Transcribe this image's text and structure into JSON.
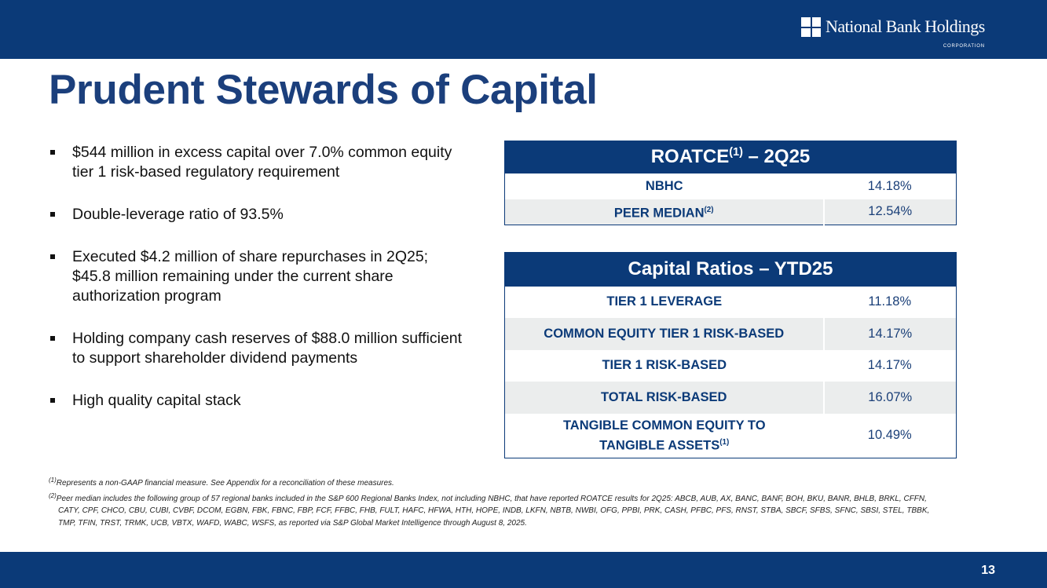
{
  "header": {
    "logo_text": "National Bank Holdings",
    "logo_sub": "CORPORATION",
    "brand_color": "#0b3a78"
  },
  "title": "Prudent Stewards of Capital",
  "bullets": [
    "$544 million in excess capital over 7.0% common equity tier 1 risk-based regulatory requirement",
    "Double-leverage ratio of 93.5%",
    "Executed $4.2 million of share repurchases in 2Q25; $45.8 million remaining under the current share authorization program",
    "Holding company cash reserves of $88.0 million sufficient to support shareholder dividend payments",
    "High quality capital stack"
  ],
  "roatce": {
    "title_pre": "ROATCE",
    "title_sup": "(1)",
    "title_post": " – 2Q25",
    "rows": [
      {
        "label": "NBHC",
        "sup": "",
        "value": "14.18%"
      },
      {
        "label": "PEER MEDIAN",
        "sup": "(2)",
        "value": "12.54%"
      }
    ]
  },
  "capital": {
    "title": "Capital Ratios – YTD25",
    "rows": [
      {
        "label": "TIER 1 LEVERAGE",
        "value": "11.18%"
      },
      {
        "label": "COMMON EQUITY TIER 1 RISK-BASED",
        "value": "14.17%"
      },
      {
        "label": "TIER 1 RISK-BASED",
        "value": "14.17%"
      },
      {
        "label": "TOTAL RISK-BASED",
        "value": "16.07%"
      },
      {
        "label_line1": "TANGIBLE COMMON EQUITY TO",
        "label_line2": "TANGIBLE ASSETS",
        "sup": "(1)",
        "value": "10.49%"
      }
    ]
  },
  "footnotes": [
    {
      "mark": "(1)",
      "text": "Represents a non-GAAP financial measure.  See Appendix for a reconciliation of these measures."
    },
    {
      "mark": "(2)",
      "text": "Peer median includes the following group of 57 regional banks included in the S&P 600 Regional Banks Index, not including NBHC, that have reported ROATCE results for 2Q25: ABCB, AUB, AX, BANC, BANF, BOH, BKU, BANR, BHLB, BRKL, CFFN, CATY, CPF, CHCO, CBU, CUBI, CVBF, DCOM, EGBN, FBK, FBNC, FBP, FCF, FFBC, FHB, FULT, HAFC, HFWA, HTH, HOPE, INDB, LKFN, NBTB, NWBI, OFG, PPBI, PRK, CASH, PFBC, PFS, RNST, STBA, SBCF, SFBS, SFNC, SBSI, STEL, TBBK, TMP, TFIN, TRST, TRMK, UCB, VBTX, WAFD, WABC, WSFS, as reported via S&P Global Market Intelligence through August 8, 2025."
    }
  ],
  "page_number": "13"
}
